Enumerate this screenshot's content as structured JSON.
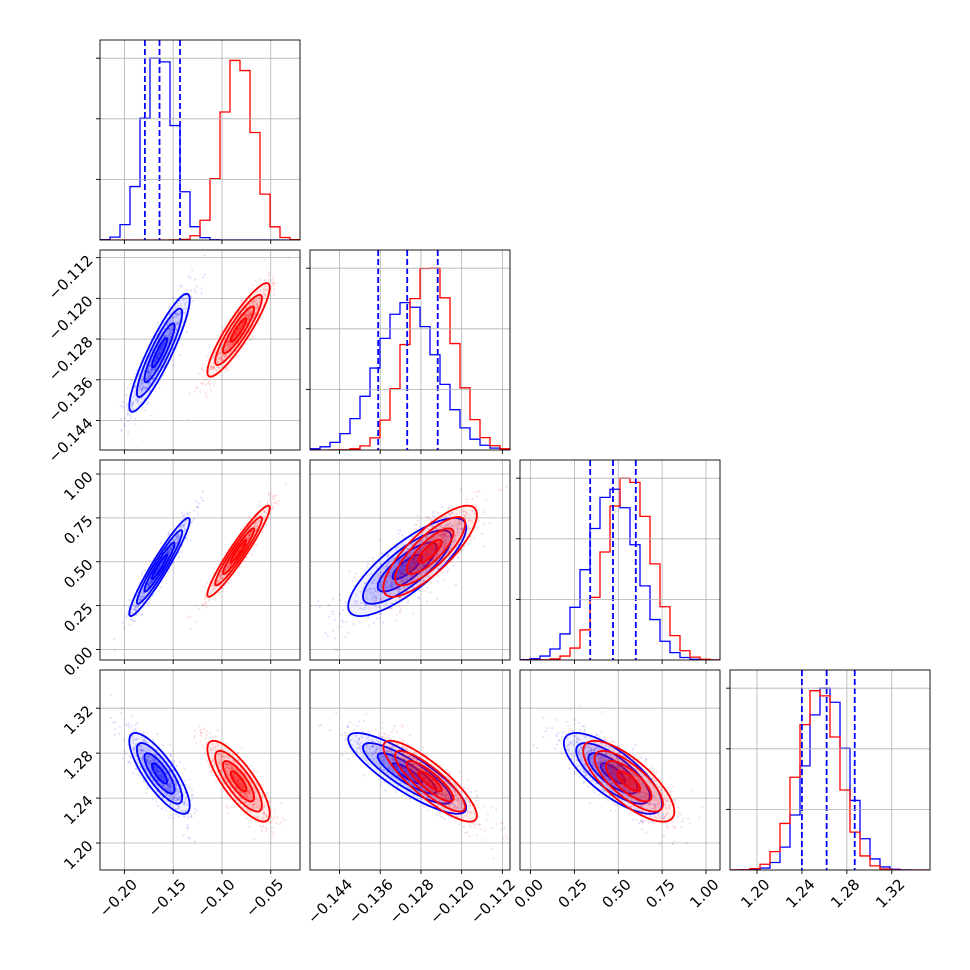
{
  "colors": {
    "blue": "#0000ff",
    "red": "#ff0000",
    "grid": "#b0b0b0"
  },
  "chart_data": {
    "type": "corner",
    "grid": true,
    "parameters": [
      {
        "ticks": [
          -0.2,
          -0.15,
          -0.1,
          -0.05
        ],
        "tick_labels": [
          "−0.20",
          "−0.15",
          "−0.10",
          "−0.05"
        ],
        "range": [
          -0.225,
          -0.02
        ]
      },
      {
        "ticks": [
          -0.144,
          -0.136,
          -0.128,
          -0.12,
          -0.112
        ],
        "tick_labels": [
          "−0.144",
          "−0.136",
          "−0.128",
          "−0.120",
          "−0.112"
        ],
        "range": [
          -0.1498,
          -0.1105
        ]
      },
      {
        "ticks": [
          0.0,
          0.25,
          0.5,
          0.75,
          1.0
        ],
        "tick_labels": [
          "0.00",
          "0.25",
          "0.50",
          "0.75",
          "1.00"
        ],
        "range": [
          -0.06,
          1.08
        ]
      },
      {
        "ticks": [
          1.2,
          1.24,
          1.28,
          1.32
        ],
        "tick_labels": [
          "1.20",
          "1.24",
          "1.28",
          "1.32"
        ],
        "range": [
          1.176,
          1.354
        ]
      }
    ],
    "series": [
      {
        "color": "blue",
        "mean": [
          -0.164,
          -0.1307,
          0.47,
          1.262
        ],
        "sd": [
          0.0155,
          0.0058,
          0.14,
          0.018
        ],
        "quantiles": [
          [
            -0.179,
            -0.164,
            -0.143
          ],
          [
            -0.1364,
            -0.1307,
            -0.1247
          ],
          [
            0.34,
            0.47,
            0.6
          ],
          [
            1.24,
            1.262,
            1.287
          ]
        ],
        "corr": [
          [
            1,
            0.9,
            0.95,
            -0.8
          ],
          [
            0.9,
            1,
            0.8,
            -0.85
          ],
          [
            0.95,
            0.8,
            1,
            -0.75
          ],
          [
            -0.8,
            -0.85,
            -0.75,
            1
          ]
        ]
      },
      {
        "color": "red",
        "mean": [
          -0.083,
          -0.1262,
          0.56,
          1.255
        ],
        "sd": [
          0.016,
          0.0046,
          0.13,
          0.018
        ],
        "quantiles": [],
        "corr": [
          [
            1,
            0.9,
            0.95,
            -0.8
          ],
          [
            0.9,
            1,
            0.8,
            -0.85
          ],
          [
            0.95,
            0.8,
            1,
            -0.75
          ],
          [
            -0.8,
            -0.85,
            -0.75,
            1
          ]
        ]
      }
    ]
  }
}
